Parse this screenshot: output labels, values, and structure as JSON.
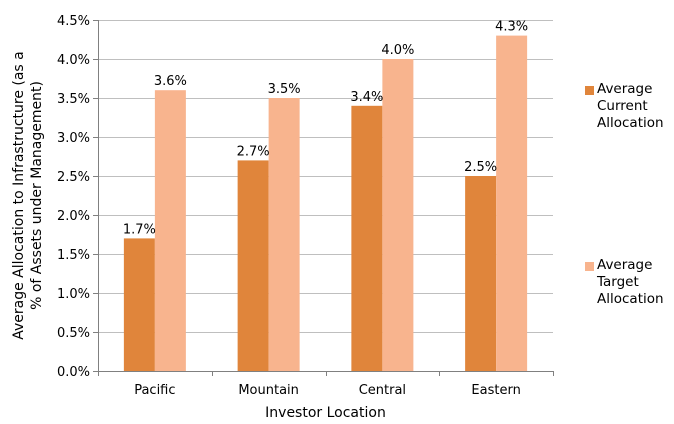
{
  "chart_data": {
    "type": "bar",
    "categories": [
      "Pacific",
      "Mountain",
      "Central",
      "Eastern"
    ],
    "series": [
      {
        "name": "Average Current Allocation",
        "values": [
          1.7,
          2.7,
          3.4,
          2.5
        ],
        "labels": [
          "1.7%",
          "2.7%",
          "3.4%",
          "2.5%"
        ],
        "color": "#E0853B"
      },
      {
        "name": "Average Target Allocation",
        "values": [
          3.6,
          3.5,
          4.0,
          4.3
        ],
        "labels": [
          "3.6%",
          "3.5%",
          "4.0%",
          "4.3%"
        ],
        "color": "#F8B48E"
      }
    ],
    "xlabel": "Investor Location",
    "ylabel_lines": [
      "Average Allocation to Infrastructure (as a",
      "% of Assets under Management)"
    ],
    "ylim": [
      0,
      4.5
    ],
    "yticks": [
      0,
      0.5,
      1.0,
      1.5,
      2.0,
      2.5,
      3.0,
      3.5,
      4.0,
      4.5
    ],
    "ytick_labels": [
      "0.0%",
      "0.5%",
      "1.0%",
      "1.5%",
      "2.0%",
      "2.5%",
      "3.0%",
      "3.5%",
      "4.0%",
      "4.5%"
    ],
    "grid": true,
    "legend_position": "right",
    "legend": [
      {
        "lines": [
          "Average",
          "Current",
          "Allocation"
        ]
      },
      {
        "lines": [
          "Average",
          "Target",
          "Allocation"
        ]
      }
    ]
  }
}
